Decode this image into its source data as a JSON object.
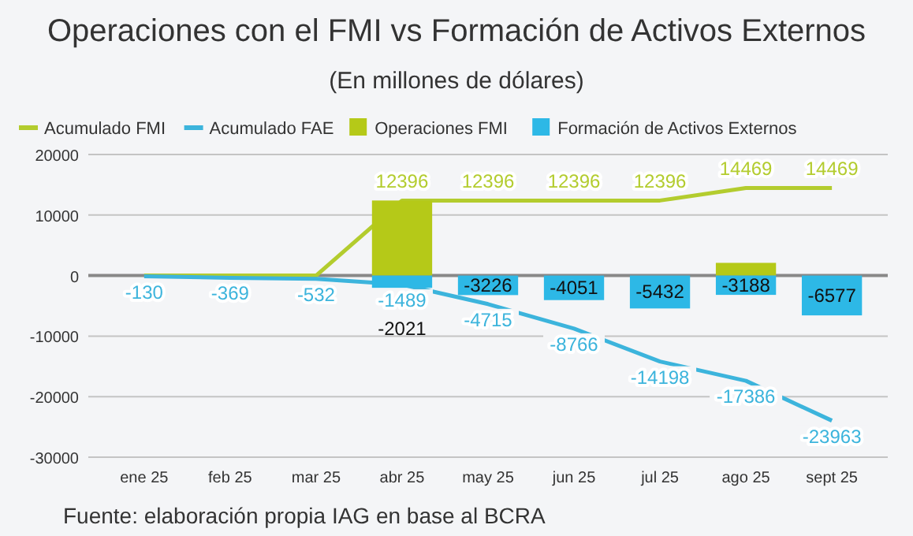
{
  "chart_data": {
    "type": "bar",
    "title": "Operaciones con el FMI vs Formación de Activos Externos",
    "subtitle": "(En millones de dólares)",
    "categories": [
      "ene 25",
      "feb 25",
      "mar 25",
      "abr 25",
      "may 25",
      "jun 25",
      "jul 25",
      "ago 25",
      "sept 25"
    ],
    "series": [
      {
        "name": "Acumulado FMI",
        "type": "line",
        "color": "#b3cc2e",
        "values": [
          0,
          0,
          0,
          12396,
          12396,
          12396,
          12396,
          14469,
          14469
        ],
        "value_labels": [
          null,
          null,
          null,
          "12396",
          "12396",
          "12396",
          "12396",
          "14469",
          "14469"
        ]
      },
      {
        "name": "Acumulado FAE",
        "type": "line",
        "color": "#3cb4dc",
        "values": [
          -130,
          -369,
          -532,
          -1489,
          -4715,
          -8766,
          -14198,
          -17386,
          -23963
        ],
        "value_labels": [
          "-130",
          "-369",
          "-532",
          "-1489",
          "-4715",
          "-8766",
          "-14198",
          "-17386",
          "-23963"
        ]
      },
      {
        "name": "Operaciones FMI",
        "color": "#b5c918",
        "values": [
          null,
          null,
          null,
          12400,
          null,
          null,
          null,
          2100,
          null
        ]
      },
      {
        "name": "Formación de Activos Externos",
        "color": "#2db8e6",
        "values": [
          null,
          null,
          null,
          -2021,
          -3226,
          -4051,
          -5432,
          -3188,
          -6577
        ],
        "value_labels": [
          null,
          null,
          null,
          "-2021",
          "-3226",
          "-4051",
          "-5432",
          "-3188",
          "-6577"
        ]
      }
    ],
    "stacked": true,
    "ylim": [
      -30000,
      20000
    ],
    "yticks": [
      -30000,
      -20000,
      -10000,
      0,
      10000,
      20000
    ],
    "grid": "y",
    "legend": "top",
    "annotations": [
      "Fuente: elaboración propia IAG en base al BCRA"
    ]
  }
}
